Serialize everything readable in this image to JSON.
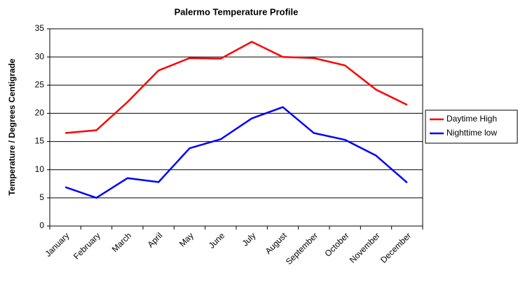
{
  "chart_data": {
    "type": "line",
    "title": "Palermo Temperature Profile",
    "y_label": "Temperature / Degrees Centigrade",
    "categories": [
      "January",
      "February",
      "March",
      "April",
      "May",
      "June",
      "July",
      "August",
      "September",
      "October",
      "November",
      "December"
    ],
    "series": [
      {
        "name": "Daytime High",
        "color": "#ff0000",
        "values": [
          16.5,
          17,
          22,
          27.6,
          29.8,
          29.7,
          32.7,
          30,
          29.8,
          28.5,
          24.2,
          21.5
        ]
      },
      {
        "name": "Nighttime low",
        "color": "#0000ff",
        "values": [
          6.9,
          5,
          8.5,
          7.8,
          13.8,
          15.4,
          19.1,
          21.1,
          16.5,
          15.3,
          12.5,
          7.7
        ]
      }
    ],
    "ylim": [
      0,
      35
    ],
    "yticks": [
      0,
      5,
      10,
      15,
      20,
      25,
      30,
      35
    ],
    "grid": true,
    "legend": "right"
  }
}
